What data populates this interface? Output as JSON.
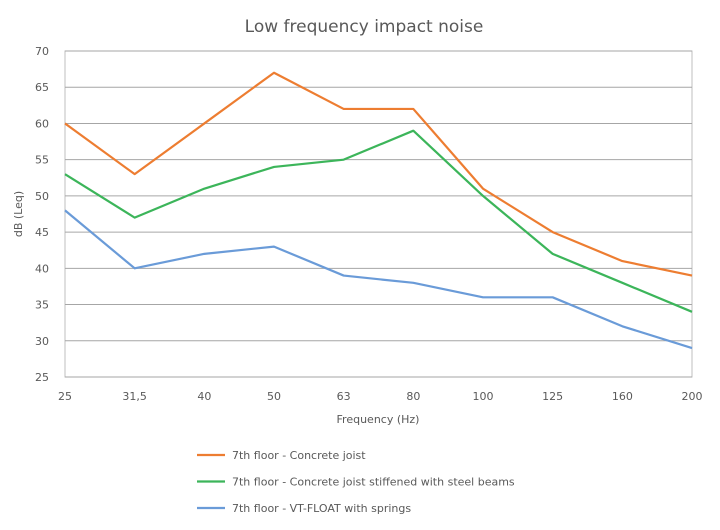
{
  "chart_data": {
    "type": "line",
    "title": "Low frequency impact noise",
    "xlabel": "Frequency (Hz)",
    "ylabel": "dB (Leq)",
    "categories": [
      "25",
      "31,5",
      "40",
      "50",
      "63",
      "80",
      "100",
      "125",
      "160",
      "200"
    ],
    "ylim": [
      25,
      70
    ],
    "yticks": [
      25,
      30,
      35,
      40,
      45,
      50,
      55,
      60,
      65,
      70
    ],
    "grid": true,
    "legend_position": "bottom",
    "series": [
      {
        "name": "7th floor - Concrete joist",
        "color": "#ED7D31",
        "values": [
          60,
          53,
          60,
          67,
          62,
          62,
          51,
          45,
          41,
          39
        ]
      },
      {
        "name": "7th floor - Concrete joist stiffened with steel beams",
        "color": "#3CB55A",
        "values": [
          53,
          47,
          51,
          54,
          55,
          59,
          50,
          42,
          38,
          34
        ]
      },
      {
        "name": "7th floor - VT-FLOAT with springs",
        "color": "#6A9BD8",
        "values": [
          48,
          40,
          42,
          43,
          39,
          38,
          36,
          36,
          32,
          29
        ]
      }
    ]
  }
}
